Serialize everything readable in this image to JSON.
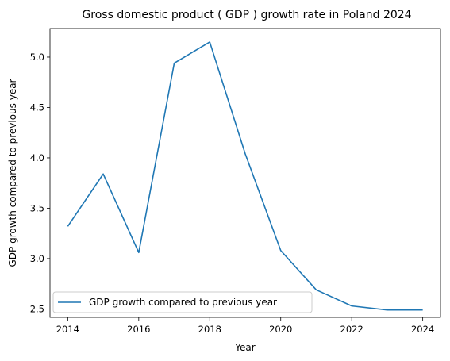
{
  "chart_data": {
    "type": "line",
    "title": "Gross domestic product ( GDP ) growth rate in Poland 2024",
    "xlabel": "Year",
    "ylabel": "GDP growth compared to previous year",
    "x": [
      2014,
      2015,
      2016,
      2017,
      2018,
      2019,
      2020,
      2021,
      2022,
      2023,
      2024
    ],
    "series": [
      {
        "name": "GDP growth compared to previous year",
        "color": "#1f77b4",
        "values": [
          3.32,
          3.84,
          3.06,
          4.94,
          5.15,
          4.04,
          3.08,
          2.69,
          2.53,
          2.49,
          2.49
        ]
      }
    ],
    "xlim": [
      2013.5,
      2024.5
    ],
    "ylim": [
      2.4167,
      5.2833
    ],
    "xticks": [
      2014,
      2016,
      2018,
      2020,
      2022,
      2024
    ],
    "yticks": [
      2.5,
      3.0,
      3.5,
      4.0,
      4.5,
      5.0
    ],
    "ytick_labels": [
      "2.5",
      "3.0",
      "3.5",
      "4.0",
      "4.5",
      "5.0"
    ],
    "grid": false,
    "legend": "lower-left"
  }
}
